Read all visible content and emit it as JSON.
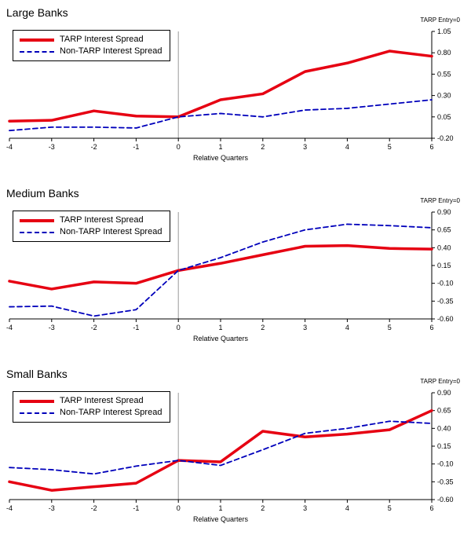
{
  "chart_data": [
    {
      "type": "line",
      "title": "Large Banks",
      "entry_label": "TARP Entry=0",
      "xlabel": "Relative Quarters",
      "x": [
        -4,
        -3,
        -2,
        -1,
        0,
        1,
        2,
        3,
        4,
        5,
        6
      ],
      "ylim": [
        -0.2,
        1.05
      ],
      "yticks": [
        1.05,
        0.8,
        0.55,
        0.3,
        0.05,
        -0.2
      ],
      "ref_line_x": 0,
      "legend_position": "top-left",
      "grid": false,
      "series": [
        {
          "name": "TARP Interest Spread",
          "color": "#e60012",
          "style": "solid",
          "width": 3.5,
          "dash": "",
          "values": [
            0.0,
            0.01,
            0.12,
            0.06,
            0.05,
            0.25,
            0.32,
            0.58,
            0.68,
            0.82,
            0.76
          ]
        },
        {
          "name": "Non-TARP Interest Spread",
          "color": "#0000bb",
          "style": "dashed",
          "width": 1.8,
          "dash": "6,4",
          "values": [
            -0.11,
            -0.07,
            -0.07,
            -0.08,
            0.05,
            0.09,
            0.05,
            0.13,
            0.15,
            0.2,
            0.25
          ]
        }
      ]
    },
    {
      "type": "line",
      "title": "Medium Banks",
      "entry_label": "TARP Entry=0",
      "xlabel": "Relative Quarters",
      "x": [
        -4,
        -3,
        -2,
        -1,
        0,
        1,
        2,
        3,
        4,
        5,
        6
      ],
      "ylim": [
        -0.6,
        0.9
      ],
      "yticks": [
        0.9,
        0.65,
        0.4,
        0.15,
        -0.1,
        -0.35,
        -0.6
      ],
      "ref_line_x": 0,
      "legend_position": "top-left",
      "grid": false,
      "series": [
        {
          "name": "TARP Interest Spread",
          "color": "#e60012",
          "style": "solid",
          "width": 3.5,
          "dash": "",
          "values": [
            -0.07,
            -0.18,
            -0.08,
            -0.1,
            0.08,
            0.18,
            0.3,
            0.42,
            0.43,
            0.39,
            0.38
          ]
        },
        {
          "name": "Non-TARP Interest Spread",
          "color": "#0000bb",
          "style": "dashed",
          "width": 1.8,
          "dash": "6,4",
          "values": [
            -0.43,
            -0.42,
            -0.56,
            -0.47,
            0.08,
            0.26,
            0.48,
            0.65,
            0.73,
            0.71,
            0.68
          ]
        }
      ]
    },
    {
      "type": "line",
      "title": "Small Banks",
      "entry_label": "TARP Entry=0",
      "xlabel": "Relative Quarters",
      "x": [
        -4,
        -3,
        -2,
        -1,
        0,
        1,
        2,
        3,
        4,
        5,
        6
      ],
      "ylim": [
        -0.6,
        0.9
      ],
      "yticks": [
        0.9,
        0.65,
        0.4,
        0.15,
        -0.1,
        -0.35,
        -0.6
      ],
      "ref_line_x": 0,
      "legend_position": "top-left",
      "grid": false,
      "series": [
        {
          "name": "TARP Interest Spread",
          "color": "#e60012",
          "style": "solid",
          "width": 3.5,
          "dash": "",
          "values": [
            -0.35,
            -0.47,
            -0.42,
            -0.37,
            -0.05,
            -0.07,
            0.36,
            0.28,
            0.32,
            0.38,
            0.65
          ]
        },
        {
          "name": "Non-TARP Interest Spread",
          "color": "#0000bb",
          "style": "dashed",
          "width": 1.8,
          "dash": "6,4",
          "values": [
            -0.15,
            -0.18,
            -0.24,
            -0.13,
            -0.05,
            -0.12,
            0.1,
            0.33,
            0.4,
            0.5,
            0.47
          ]
        }
      ]
    }
  ]
}
